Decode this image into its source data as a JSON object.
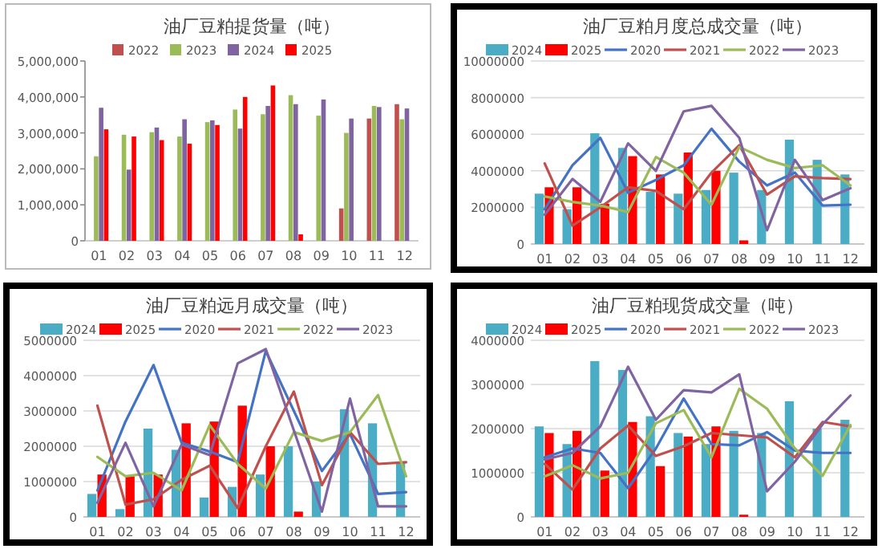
{
  "chart_data": [
    {
      "type": "bar",
      "title": "油厂豆粕提货量（吨）",
      "categories": [
        "01",
        "02",
        "03",
        "04",
        "05",
        "06",
        "07",
        "08",
        "09",
        "10",
        "11",
        "12"
      ],
      "ylim": [
        0,
        5000000
      ],
      "yticks": [
        {
          "value": 0,
          "label": "0"
        },
        {
          "value": 1000000,
          "label": "1,000,000"
        },
        {
          "value": 2000000,
          "label": "2,000,000"
        },
        {
          "value": 3000000,
          "label": "3,000,000"
        },
        {
          "value": 4000000,
          "label": "4,000,000"
        },
        {
          "value": 5000000,
          "label": "5,000,000"
        }
      ],
      "legend": "top",
      "series": [
        {
          "name": "2022",
          "color": "#c0504d",
          "values": [
            null,
            null,
            null,
            null,
            null,
            null,
            null,
            null,
            null,
            900000,
            3400000,
            3800000
          ]
        },
        {
          "name": "2023",
          "color": "#9bbb59",
          "values": [
            2350000,
            2950000,
            3020000,
            2900000,
            3300000,
            3650000,
            3520000,
            4050000,
            3480000,
            3000000,
            3750000,
            3380000
          ]
        },
        {
          "name": "2024",
          "color": "#8064a2",
          "values": [
            3700000,
            1980000,
            3150000,
            3380000,
            3350000,
            3120000,
            3750000,
            3800000,
            3930000,
            3400000,
            3720000,
            3680000
          ]
        },
        {
          "name": "2025",
          "color": "#ff0000",
          "values": [
            3100000,
            2900000,
            2800000,
            2700000,
            3220000,
            4000000,
            4320000,
            180000,
            null,
            null,
            null,
            null
          ]
        }
      ]
    },
    {
      "type": "bar",
      "title": "油厂豆粕月度总成交量（吨）",
      "categories": [
        "01",
        "02",
        "03",
        "04",
        "05",
        "06",
        "07",
        "08",
        "09",
        "10",
        "11",
        "12"
      ],
      "ylim": [
        0,
        10000000
      ],
      "yticks": [
        0,
        2000000,
        4000000,
        6000000,
        8000000,
        10000000
      ],
      "grid": "y",
      "legend": "top",
      "series": [
        {
          "name": "2024",
          "color": "#4bacc6",
          "values": [
            2750000,
            1900000,
            6050000,
            5250000,
            2850000,
            2750000,
            2950000,
            3900000,
            2950000,
            5700000,
            4600000,
            3800000
          ]
        },
        {
          "name": "2025",
          "color": "#ff0000",
          "values": [
            3100000,
            3100000,
            2200000,
            4800000,
            3800000,
            5000000,
            4000000,
            200000,
            null,
            null,
            null,
            null
          ]
        },
        {
          "name": "2020",
          "type": "line",
          "color": "#4472c4",
          "values": [
            1900000,
            4300000,
            5800000,
            2800000,
            3500000,
            4300000,
            6300000,
            4500000,
            3200000,
            3900000,
            2100000,
            2150000
          ]
        },
        {
          "name": "2021",
          "type": "line",
          "color": "#c0504d",
          "values": [
            4400000,
            1000000,
            2000000,
            3100000,
            2900000,
            1900000,
            3900000,
            5400000,
            2700000,
            3700000,
            3600000,
            3550000
          ]
        },
        {
          "name": "2022",
          "type": "line",
          "color": "#9bbb59",
          "values": [
            2600000,
            2300000,
            2100000,
            1750000,
            4750000,
            3900000,
            2150000,
            5300000,
            4600000,
            4150000,
            4300000,
            3200000
          ]
        },
        {
          "name": "2023",
          "type": "line",
          "color": "#8064a2",
          "values": [
            1600000,
            3550000,
            2300000,
            5500000,
            4000000,
            7250000,
            7550000,
            5800000,
            750000,
            4600000,
            2400000,
            3050000
          ]
        }
      ]
    },
    {
      "type": "bar",
      "title": "油厂豆粕远月成交量（吨）",
      "categories": [
        "01",
        "02",
        "03",
        "04",
        "05",
        "06",
        "07",
        "08",
        "09",
        "10",
        "11",
        "12"
      ],
      "ylim": [
        0,
        5000000
      ],
      "yticks": [
        0,
        1000000,
        2000000,
        3000000,
        4000000,
        5000000
      ],
      "grid": "y",
      "legend": "top",
      "series": [
        {
          "name": "2024",
          "color": "#4bacc6",
          "values": [
            650000,
            220000,
            2500000,
            1900000,
            550000,
            850000,
            1200000,
            2000000,
            1000000,
            3050000,
            2650000,
            1550000
          ]
        },
        {
          "name": "2025",
          "color": "#ff0000",
          "values": [
            1200000,
            1150000,
            1200000,
            2650000,
            2700000,
            3150000,
            2000000,
            150000,
            null,
            null,
            null,
            null
          ]
        },
        {
          "name": "2020",
          "type": "line",
          "color": "#4472c4",
          "values": [
            750000,
            2700000,
            4300000,
            2100000,
            1850000,
            1550000,
            4700000,
            3000000,
            1300000,
            2350000,
            650000,
            700000
          ]
        },
        {
          "name": "2021",
          "type": "line",
          "color": "#c0504d",
          "values": [
            3150000,
            350000,
            500000,
            1050000,
            1450000,
            250000,
            2000000,
            3550000,
            900000,
            2400000,
            1500000,
            1550000
          ]
        },
        {
          "name": "2022",
          "type": "line",
          "color": "#9bbb59",
          "values": [
            1700000,
            1150000,
            1250000,
            750000,
            2600000,
            1500000,
            800000,
            2400000,
            2150000,
            2400000,
            3450000,
            1150000
          ]
        },
        {
          "name": "2023",
          "type": "line",
          "color": "#8064a2",
          "values": [
            400000,
            2100000,
            300000,
            2050000,
            1750000,
            4350000,
            4750000,
            2450000,
            150000,
            3350000,
            300000,
            300000
          ]
        }
      ]
    },
    {
      "type": "bar",
      "title": "油厂豆粕现货成交量（吨）",
      "categories": [
        "01",
        "02",
        "03",
        "04",
        "05",
        "06",
        "07",
        "08",
        "09",
        "10",
        "11",
        "12"
      ],
      "ylim": [
        0,
        4000000
      ],
      "yticks": [
        0,
        1000000,
        2000000,
        3000000,
        4000000
      ],
      "grid": "y",
      "legend": "top",
      "series": [
        {
          "name": "2024",
          "color": "#4bacc6",
          "values": [
            2050000,
            1650000,
            3530000,
            3330000,
            2280000,
            1900000,
            1650000,
            1950000,
            1900000,
            2620000,
            2000000,
            2200000
          ]
        },
        {
          "name": "2025",
          "color": "#ff0000",
          "values": [
            1900000,
            1950000,
            1050000,
            2150000,
            1150000,
            1820000,
            2050000,
            50000,
            null,
            null,
            null,
            null
          ]
        },
        {
          "name": "2020",
          "type": "line",
          "color": "#4472c4",
          "values": [
            1350000,
            1550000,
            1450000,
            650000,
            1550000,
            2680000,
            1650000,
            1620000,
            1920000,
            1500000,
            1450000,
            1450000
          ]
        },
        {
          "name": "2021",
          "type": "line",
          "color": "#c0504d",
          "values": [
            1200000,
            620000,
            1550000,
            2070000,
            1380000,
            1600000,
            1900000,
            1850000,
            1800000,
            1350000,
            2150000,
            2050000
          ]
        },
        {
          "name": "2022",
          "type": "line",
          "color": "#9bbb59",
          "values": [
            920000,
            1170000,
            870000,
            1000000,
            2120000,
            2420000,
            1350000,
            2900000,
            2450000,
            1550000,
            930000,
            2080000
          ]
        },
        {
          "name": "2023",
          "type": "line",
          "color": "#8064a2",
          "values": [
            1300000,
            1450000,
            2050000,
            3400000,
            2200000,
            2870000,
            2820000,
            3230000,
            580000,
            1250000,
            2100000,
            2750000
          ]
        }
      ]
    }
  ]
}
